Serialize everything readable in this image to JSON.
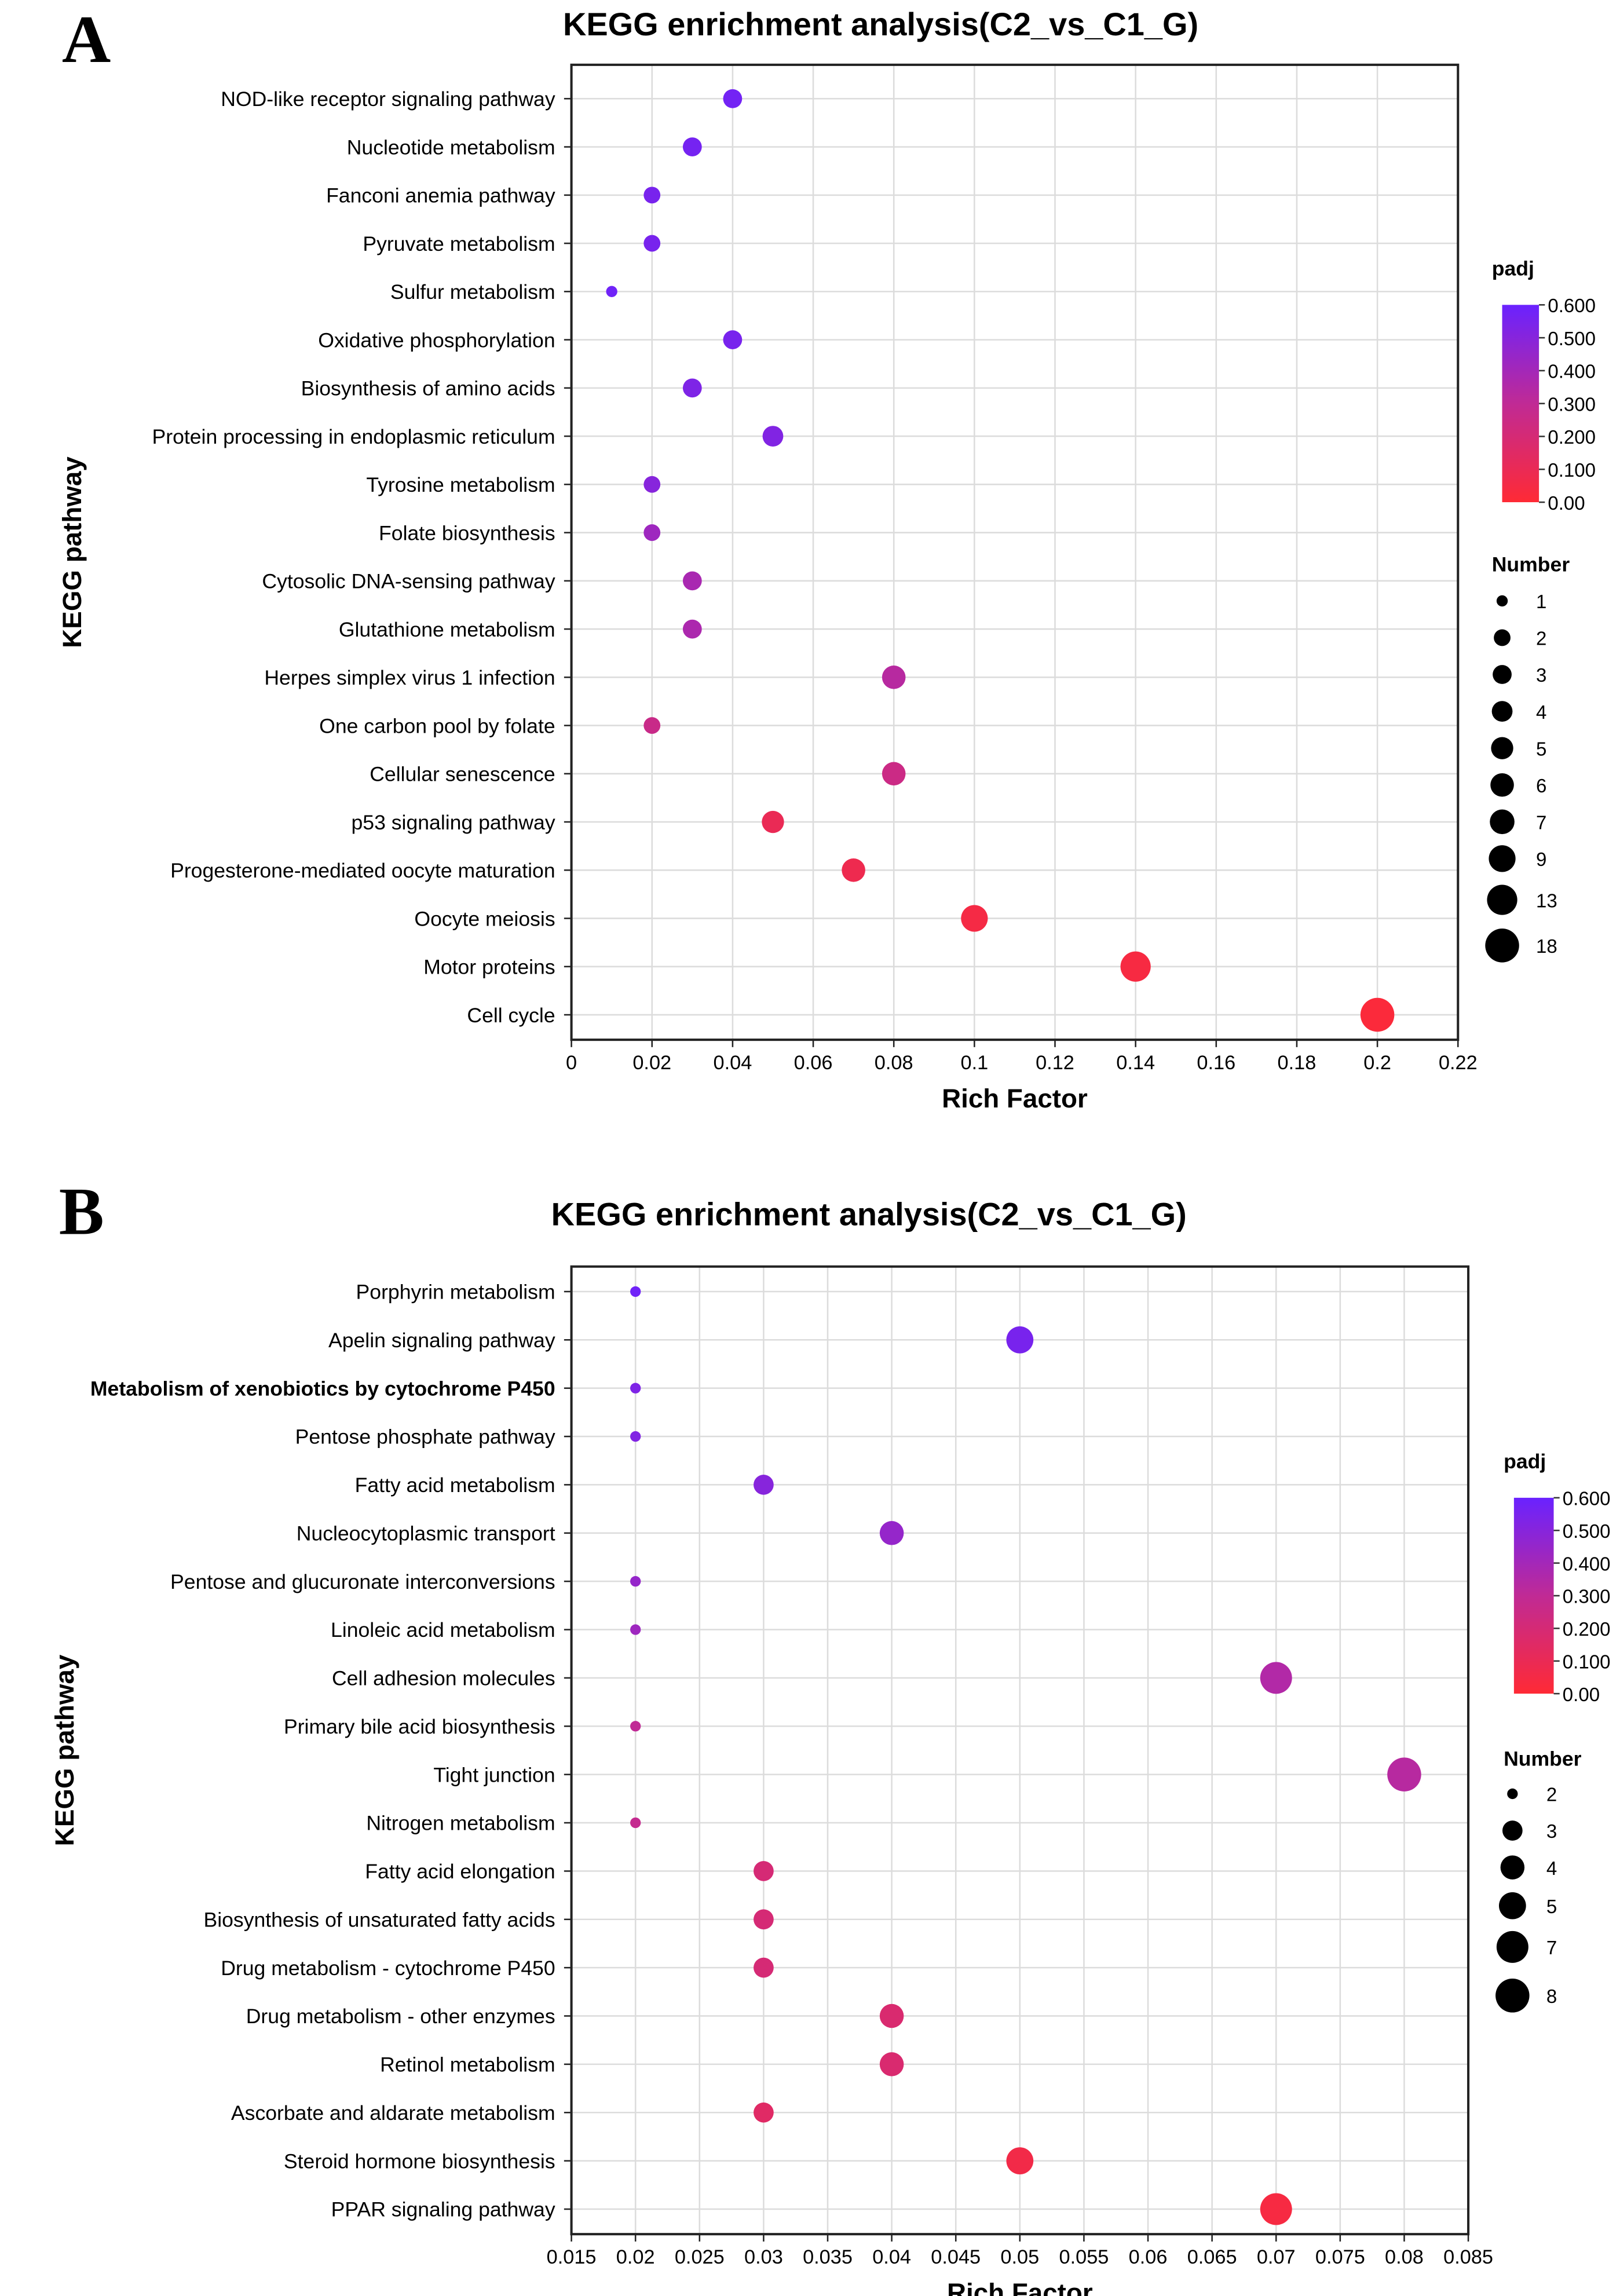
{
  "chart_data": [
    {
      "panel_label": "A",
      "type": "scatter",
      "title": "KEGG enrichment analysis(C2_vs_C1_G)",
      "xlabel": "Rich Factor",
      "ylabel": "KEGG pathway",
      "xlim": [
        0,
        0.22
      ],
      "xticks": [
        0,
        0.02,
        0.04,
        0.06,
        0.08,
        0.1,
        0.12,
        0.14,
        0.16,
        0.18,
        0.2,
        0.22
      ],
      "xtick_labels": [
        "0",
        "0.02",
        "0.04",
        "0.06",
        "0.08",
        "0.1",
        "0.12",
        "0.14",
        "0.16",
        "0.18",
        "0.2",
        "0.22"
      ],
      "grid": true,
      "color_legend": {
        "title": "padj",
        "range": [
          0,
          0.6
        ],
        "labels": [
          "0.600",
          "0.500",
          "0.400",
          "0.300",
          "0.200",
          "0.100",
          "0.00"
        ],
        "low_color": "#ff2a35",
        "high_color": "#6a22ff"
      },
      "size_legend": {
        "title": "Number",
        "values": [
          1,
          2,
          3,
          4,
          5,
          6,
          7,
          9,
          13,
          18
        ]
      },
      "points": [
        {
          "pathway": "NOD-like receptor signaling pathway",
          "rich_factor": 0.04,
          "padj": 0.57,
          "number": 3
        },
        {
          "pathway": "Nucleotide metabolism",
          "rich_factor": 0.03,
          "padj": 0.56,
          "number": 3
        },
        {
          "pathway": "Fanconi anemia pathway",
          "rich_factor": 0.02,
          "padj": 0.55,
          "number": 2
        },
        {
          "pathway": "Pyruvate metabolism",
          "rich_factor": 0.02,
          "padj": 0.55,
          "number": 2
        },
        {
          "pathway": "Sulfur metabolism",
          "rich_factor": 0.01,
          "padj": 0.58,
          "number": 1
        },
        {
          "pathway": "Oxidative phosphorylation",
          "rich_factor": 0.04,
          "padj": 0.55,
          "number": 3
        },
        {
          "pathway": "Biosynthesis of amino acids",
          "rich_factor": 0.03,
          "padj": 0.53,
          "number": 3
        },
        {
          "pathway": "Protein processing in endoplasmic reticulum",
          "rich_factor": 0.05,
          "padj": 0.52,
          "number": 4
        },
        {
          "pathway": "Tyrosine metabolism",
          "rich_factor": 0.02,
          "padj": 0.5,
          "number": 2
        },
        {
          "pathway": "Folate biosynthesis",
          "rich_factor": 0.02,
          "padj": 0.42,
          "number": 2
        },
        {
          "pathway": "Cytosolic DNA-sensing pathway",
          "rich_factor": 0.03,
          "padj": 0.38,
          "number": 3
        },
        {
          "pathway": "Glutathione metabolism",
          "rich_factor": 0.03,
          "padj": 0.37,
          "number": 3
        },
        {
          "pathway": "Herpes simplex virus 1 infection",
          "rich_factor": 0.08,
          "padj": 0.33,
          "number": 6
        },
        {
          "pathway": "One carbon pool by folate",
          "rich_factor": 0.02,
          "padj": 0.26,
          "number": 2
        },
        {
          "pathway": "Cellular senescence",
          "rich_factor": 0.08,
          "padj": 0.25,
          "number": 6
        },
        {
          "pathway": "p53 signaling pathway",
          "rich_factor": 0.05,
          "padj": 0.1,
          "number": 5
        },
        {
          "pathway": "Progesterone-mediated oocyte maturation",
          "rich_factor": 0.07,
          "padj": 0.08,
          "number": 6
        },
        {
          "pathway": "Oocyte meiosis",
          "rich_factor": 0.1,
          "padj": 0.05,
          "number": 9
        },
        {
          "pathway": "Motor proteins",
          "rich_factor": 0.14,
          "padj": 0.04,
          "number": 13
        },
        {
          "pathway": "Cell cycle",
          "rich_factor": 0.2,
          "padj": 0.02,
          "number": 18
        }
      ]
    },
    {
      "panel_label": "B",
      "type": "scatter",
      "title": "KEGG enrichment analysis(C2_vs_C1_G)",
      "xlabel": "Rich Factor",
      "ylabel": "KEGG pathway",
      "xlim": [
        0.015,
        0.085
      ],
      "xticks": [
        0.015,
        0.02,
        0.025,
        0.03,
        0.035,
        0.04,
        0.045,
        0.05,
        0.055,
        0.06,
        0.065,
        0.07,
        0.075,
        0.08,
        0.085
      ],
      "xtick_labels": [
        "0.015",
        "0.02",
        "0.025",
        "0.03",
        "0.035",
        "0.04",
        "0.045",
        "0.05",
        "0.055",
        "0.06",
        "0.065",
        "0.07",
        "0.075",
        "0.08",
        "0.085"
      ],
      "grid": true,
      "color_legend": {
        "title": "padj",
        "range": [
          0,
          0.6
        ],
        "labels": [
          "0.600",
          "0.500",
          "0.400",
          "0.300",
          "0.200",
          "0.100",
          "0.00"
        ],
        "low_color": "#ff2a35",
        "high_color": "#6a22ff"
      },
      "size_legend": {
        "title": "Number",
        "values": [
          2,
          3,
          4,
          5,
          7,
          8
        ]
      },
      "points": [
        {
          "pathway": "Porphyrin metabolism",
          "rich_factor": 0.02,
          "padj": 0.58,
          "number": 2
        },
        {
          "pathway": "Apelin signaling pathway",
          "rich_factor": 0.05,
          "padj": 0.55,
          "number": 5
        },
        {
          "pathway": "Metabolism of xenobiotics by cytochrome P450",
          "rich_factor": 0.02,
          "padj": 0.53,
          "number": 2,
          "emphasized": true
        },
        {
          "pathway": "Pentose phosphate pathway",
          "rich_factor": 0.02,
          "padj": 0.52,
          "number": 2
        },
        {
          "pathway": "Fatty acid metabolism",
          "rich_factor": 0.03,
          "padj": 0.5,
          "number": 3
        },
        {
          "pathway": "Nucleocytoplasmic transport",
          "rich_factor": 0.04,
          "padj": 0.45,
          "number": 4
        },
        {
          "pathway": "Pentose and glucuronate interconversions",
          "rich_factor": 0.02,
          "padj": 0.45,
          "number": 2
        },
        {
          "pathway": "Linoleic acid metabolism",
          "rich_factor": 0.02,
          "padj": 0.42,
          "number": 2
        },
        {
          "pathway": "Cell adhesion molecules",
          "rich_factor": 0.07,
          "padj": 0.35,
          "number": 7
        },
        {
          "pathway": "Primary bile acid biosynthesis",
          "rich_factor": 0.02,
          "padj": 0.3,
          "number": 2
        },
        {
          "pathway": "Tight junction",
          "rich_factor": 0.08,
          "padj": 0.33,
          "number": 8
        },
        {
          "pathway": "Nitrogen metabolism",
          "rich_factor": 0.02,
          "padj": 0.28,
          "number": 2
        },
        {
          "pathway": "Fatty acid elongation",
          "rich_factor": 0.03,
          "padj": 0.2,
          "number": 3
        },
        {
          "pathway": "Biosynthesis of unsaturated fatty acids",
          "rich_factor": 0.03,
          "padj": 0.2,
          "number": 3
        },
        {
          "pathway": "Drug metabolism - cytochrome P450",
          "rich_factor": 0.03,
          "padj": 0.2,
          "number": 3
        },
        {
          "pathway": "Drug metabolism - other enzymes",
          "rich_factor": 0.04,
          "padj": 0.18,
          "number": 4
        },
        {
          "pathway": "Retinol metabolism",
          "rich_factor": 0.04,
          "padj": 0.18,
          "number": 4
        },
        {
          "pathway": "Ascorbate and aldarate metabolism",
          "rich_factor": 0.03,
          "padj": 0.15,
          "number": 3
        },
        {
          "pathway": "Steroid hormone biosynthesis",
          "rich_factor": 0.05,
          "padj": 0.06,
          "number": 5
        },
        {
          "pathway": "PPAR signaling pathway",
          "rich_factor": 0.07,
          "padj": 0.04,
          "number": 7
        }
      ]
    }
  ]
}
